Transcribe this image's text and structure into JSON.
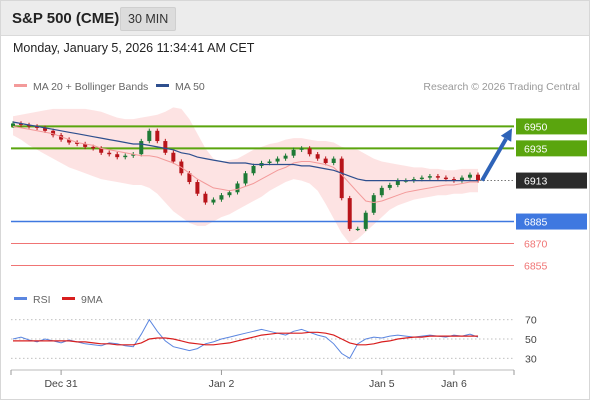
{
  "header": {
    "title": "S&P 500 (CME)",
    "timeframe": "30 MIN"
  },
  "timestamp": "Monday, January 5, 2026 11:34:41 AM CET",
  "legend": {
    "ma20_bb": "MA 20 + Bollinger Bands",
    "ma50": "MA 50",
    "rsi": "RSI",
    "ma9": "9MA"
  },
  "copyright": "Research © 2026 Trading Central",
  "colors": {
    "resistance": "#5aa50e",
    "support": "#3f78e0",
    "pivot": "#2b2b2b",
    "minor": "#f07474",
    "bb_band": "#fcdcdc",
    "ma20": "#f39a9a",
    "ma50": "#2e4f8e",
    "candle_up": "#1e7a36",
    "candle_down": "#b8141a",
    "arrow": "#2e63b8",
    "rsi": "#5b86e0",
    "rsi_ma": "#d81e1e"
  },
  "chart_data": [
    {
      "type": "candlestick",
      "ylim": [
        6843,
        6966
      ],
      "levels": [
        {
          "value": 6950,
          "label": "6950",
          "kind": "resistance"
        },
        {
          "value": 6935,
          "label": "6935",
          "kind": "resistance"
        },
        {
          "value": 6913,
          "label": "6913",
          "kind": "pivot"
        },
        {
          "value": 6885,
          "label": "6885",
          "kind": "support"
        },
        {
          "value": 6870,
          "label": "6870",
          "kind": "minor"
        },
        {
          "value": 6855,
          "label": "6855",
          "kind": "minor"
        }
      ],
      "arrow": {
        "from": 6913,
        "to": 6950
      },
      "x_ticks": [
        {
          "label": "Dec 31",
          "index": 6
        },
        {
          "label": "Jan 2",
          "index": 26
        },
        {
          "label": "Jan 5",
          "index": 46
        },
        {
          "label": "Jan 6",
          "index": 55
        }
      ],
      "bar_count": 59,
      "close": [
        6952,
        6951,
        6950,
        6949,
        6947,
        6944,
        6941,
        6939,
        6938,
        6936,
        6935,
        6932,
        6931,
        6929,
        6930,
        6931,
        6940,
        6947,
        6940,
        6932,
        6926,
        6918,
        6912,
        6904,
        6898,
        6900,
        6903,
        6905,
        6911,
        6918,
        6923,
        6925,
        6926,
        6928,
        6930,
        6934,
        6935,
        6931,
        6928,
        6925,
        6928,
        6901,
        6880,
        6880,
        6891,
        6903,
        6908,
        6910,
        6913,
        6913,
        6914,
        6915,
        6916,
        6915,
        6914,
        6913,
        6915,
        6917,
        6913
      ],
      "ma20": [
        6950,
        6949,
        6948,
        6947,
        6946,
        6945,
        6943,
        6941,
        6939,
        6938,
        6937,
        6935,
        6934,
        6933,
        6932,
        6931,
        6930,
        6930,
        6929,
        6927,
        6925,
        6922,
        6918,
        6914,
        6911,
        6908,
        6907,
        6906,
        6907,
        6909,
        6911,
        6914,
        6917,
        6920,
        6922,
        6925,
        6926,
        6926,
        6925,
        6924,
        6922,
        6917,
        6911,
        6905,
        6899,
        6898,
        6899,
        6901,
        6903,
        6905,
        6906,
        6907,
        6908,
        6909,
        6910,
        6910,
        6911,
        6912,
        6912
      ],
      "ma50": [
        6953,
        6952,
        6951,
        6950,
        6949,
        6948,
        6947,
        6946,
        6945,
        6944,
        6943,
        6942,
        6941,
        6940,
        6939,
        6938,
        6938,
        6937,
        6936,
        6935,
        6934,
        6932,
        6931,
        6929,
        6928,
        6927,
        6926,
        6925,
        6925,
        6925,
        6924,
        6924,
        6924,
        6924,
        6924,
        6924,
        6923,
        6923,
        6922,
        6921,
        6920,
        6918,
        6916,
        6914,
        6913,
        6913,
        6913,
        6913,
        6913,
        6913,
        6913,
        6913,
        6913,
        6913,
        6913,
        6913,
        6913,
        6913,
        6913
      ],
      "bb_upper": [
        6957,
        6958,
        6959,
        6960,
        6961,
        6962,
        6962,
        6962,
        6962,
        6962,
        6961,
        6960,
        6958,
        6956,
        6955,
        6955,
        6956,
        6957,
        6958,
        6960,
        6963,
        6962,
        6955,
        6945,
        6935,
        6928,
        6926,
        6927,
        6928,
        6931,
        6934,
        6936,
        6938,
        6939,
        6941,
        6942,
        6942,
        6941,
        6940,
        6940,
        6939,
        6936,
        6935,
        6934,
        6931,
        6928,
        6926,
        6925,
        6924,
        6923,
        6922,
        6922,
        6921,
        6921,
        6920,
        6920,
        6921,
        6921,
        6921
      ],
      "bb_lower": [
        6944,
        6941,
        6937,
        6934,
        6931,
        6928,
        6925,
        6922,
        6920,
        6918,
        6916,
        6914,
        6913,
        6912,
        6911,
        6910,
        6910,
        6908,
        6904,
        6898,
        6892,
        6888,
        6884,
        6882,
        6882,
        6885,
        6888,
        6890,
        6893,
        6896,
        6899,
        6902,
        6906,
        6909,
        6912,
        6914,
        6913,
        6911,
        6906,
        6897,
        6887,
        6877,
        6870,
        6873,
        6878,
        6883,
        6888,
        6893,
        6896,
        6898,
        6900,
        6901,
        6902,
        6903,
        6903,
        6904,
        6904,
        6905,
        6905
      ]
    },
    {
      "type": "line",
      "name": "RSI",
      "ylim": [
        22,
        78
      ],
      "y_ticks": [
        70,
        50,
        30
      ],
      "rsi": [
        50,
        52,
        49,
        47,
        50,
        48,
        46,
        49,
        47,
        45,
        44,
        43,
        46,
        45,
        43,
        42,
        55,
        70,
        58,
        48,
        42,
        40,
        38,
        40,
        45,
        47,
        50,
        52,
        54,
        56,
        58,
        60,
        58,
        56,
        54,
        58,
        60,
        57,
        54,
        52,
        45,
        35,
        30,
        45,
        50,
        52,
        51,
        53,
        54,
        53,
        52,
        53,
        54,
        53,
        52,
        54,
        53,
        55,
        52
      ],
      "rsi_ma": [
        48,
        48,
        48,
        48,
        48,
        48,
        48,
        48,
        47,
        47,
        46,
        45,
        45,
        44,
        44,
        44,
        46,
        50,
        51,
        51,
        50,
        48,
        46,
        45,
        44,
        44,
        45,
        46,
        48,
        50,
        52,
        54,
        55,
        56,
        56,
        56,
        56,
        57,
        57,
        56,
        54,
        50,
        46,
        44,
        44,
        45,
        47,
        48,
        50,
        51,
        52,
        52,
        53,
        53,
        53,
        53,
        53,
        53,
        53
      ]
    }
  ]
}
